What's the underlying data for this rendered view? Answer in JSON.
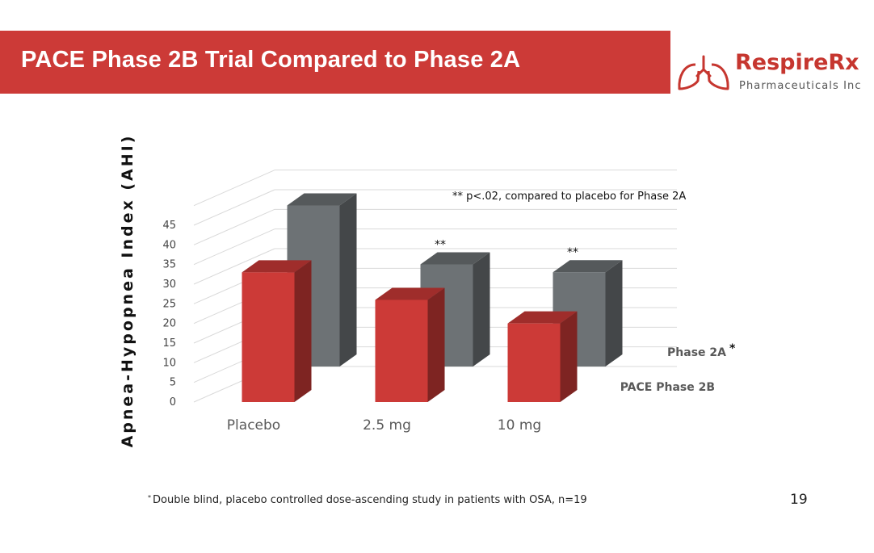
{
  "header": {
    "title": "PACE Phase 2B Trial Compared to Phase 2A"
  },
  "logo": {
    "name": "RespireRx",
    "tagline": "Pharmaceuticals Inc"
  },
  "chart_data": {
    "type": "bar",
    "categories": [
      "Placebo",
      "2.5 mg",
      "10 mg"
    ],
    "series": [
      {
        "name": "PACE Phase 2B",
        "values": [
          33,
          26,
          20
        ],
        "color": "#cc3a37"
      },
      {
        "name": "Phase 2A",
        "values": [
          41,
          26,
          24
        ],
        "color": "#6d7275"
      }
    ],
    "ylabel": "Apnea-Hypopnea Index (AHI)",
    "ylim": [
      0,
      45
    ],
    "yticks": [
      "0",
      "5",
      "10",
      "15",
      "20",
      "25",
      "30",
      "35",
      "40",
      "45"
    ],
    "bar_labels": [
      "",
      "**",
      "**"
    ],
    "series_marker": "*",
    "annotation": "** p<.02, compared to placebo for Phase 2A",
    "grid": true,
    "legend": "right"
  },
  "footnote": {
    "marker": "*",
    "text": "Double blind, placebo controlled dose-ascending study in patients with OSA, n=19"
  },
  "page_number": "19"
}
